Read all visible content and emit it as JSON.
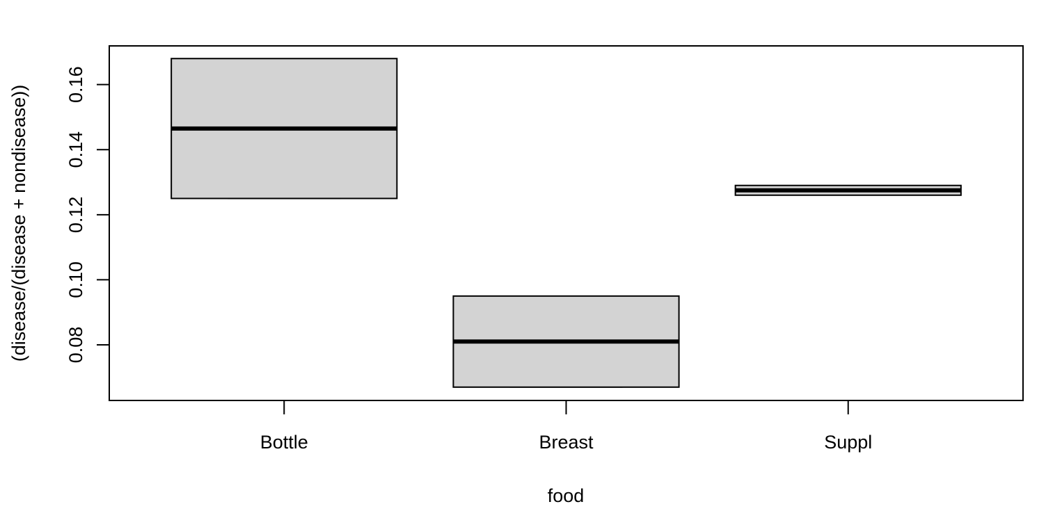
{
  "chart_data": {
    "type": "boxplot",
    "title": "",
    "xlabel": "food",
    "ylabel": "(disease/(disease + nondisease))",
    "categories": [
      "Bottle",
      "Breast",
      "Suppl"
    ],
    "boxes": [
      {
        "category": "Bottle",
        "min": 0.125,
        "q1": 0.125,
        "median": 0.1465,
        "q3": 0.168,
        "max": 0.168
      },
      {
        "category": "Breast",
        "min": 0.067,
        "q1": 0.067,
        "median": 0.081,
        "q3": 0.095,
        "max": 0.095
      },
      {
        "category": "Suppl",
        "min": 0.126,
        "q1": 0.126,
        "median": 0.1275,
        "q3": 0.129,
        "max": 0.129
      }
    ],
    "yticks": [
      0.08,
      0.1,
      0.12,
      0.14,
      0.16
    ],
    "ytick_labels": [
      "0.08",
      "0.10",
      "0.12",
      "0.14",
      "0.16"
    ],
    "ylim": [
      0.0629,
      0.1719
    ],
    "grid": false,
    "colors": {
      "box_fill": "#d3d3d3",
      "stroke": "#000000"
    }
  }
}
